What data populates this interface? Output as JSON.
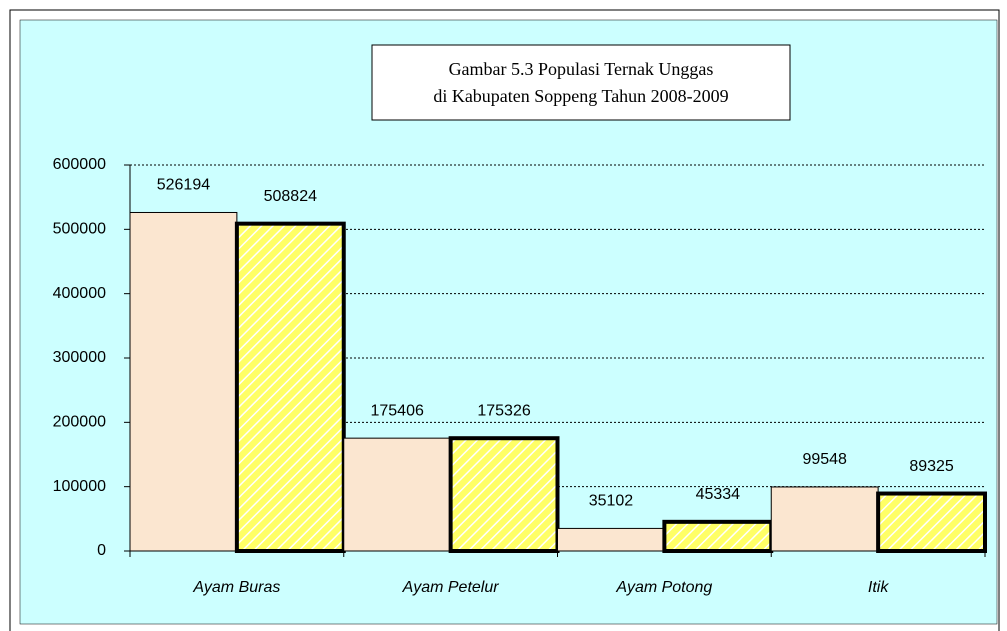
{
  "chart_data": {
    "type": "bar",
    "title": [
      "Gambar 5.3 Populasi Ternak Unggas",
      "di Kabupaten Soppeng Tahun 2008-2009"
    ],
    "categories": [
      "Ayam Buras",
      "Ayam Petelur",
      "Ayam Potong",
      "Itik"
    ],
    "series": [
      {
        "color": "#fbe6d0",
        "values": [
          526194,
          175406,
          35102,
          99548
        ]
      },
      {
        "color": "#ffff66",
        "values": [
          508824,
          175326,
          45334,
          89325
        ]
      }
    ],
    "ylim": [
      0,
      600000
    ],
    "yticks": [
      0,
      100000,
      200000,
      300000,
      400000,
      500000,
      600000
    ],
    "grid": true
  }
}
